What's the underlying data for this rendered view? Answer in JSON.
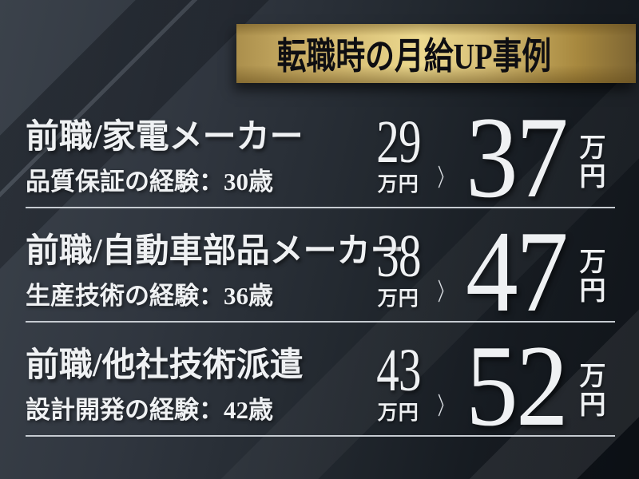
{
  "banner": {
    "title": "転職時の月給UP事例"
  },
  "glyphs": {
    "chevron_right": "〉"
  },
  "rows": [
    {
      "title": "前職/家電メーカー",
      "subtitle": "品質保証の経験：30歳",
      "before_value": "29",
      "after_value": "37",
      "unit": "万円"
    },
    {
      "title": "前職/自動車部品メーカー",
      "subtitle": "生産技術の経験：36歳",
      "before_value": "38",
      "after_value": "47",
      "unit": "万円"
    },
    {
      "title": "前職/他社技術派遣",
      "subtitle": "設計開発の経験：42歳",
      "before_value": "43",
      "after_value": "52",
      "unit": "万円"
    }
  ],
  "colors": {
    "gold_left": "#ab8f4c",
    "gold_center": "#ecd98f",
    "gold_right": "#7d6533",
    "background_light": "#3b424b",
    "background_dark": "#101419",
    "text": "#eff1f3",
    "separator_line": "#c6cbd1",
    "banner_text": "#0e0e12"
  }
}
